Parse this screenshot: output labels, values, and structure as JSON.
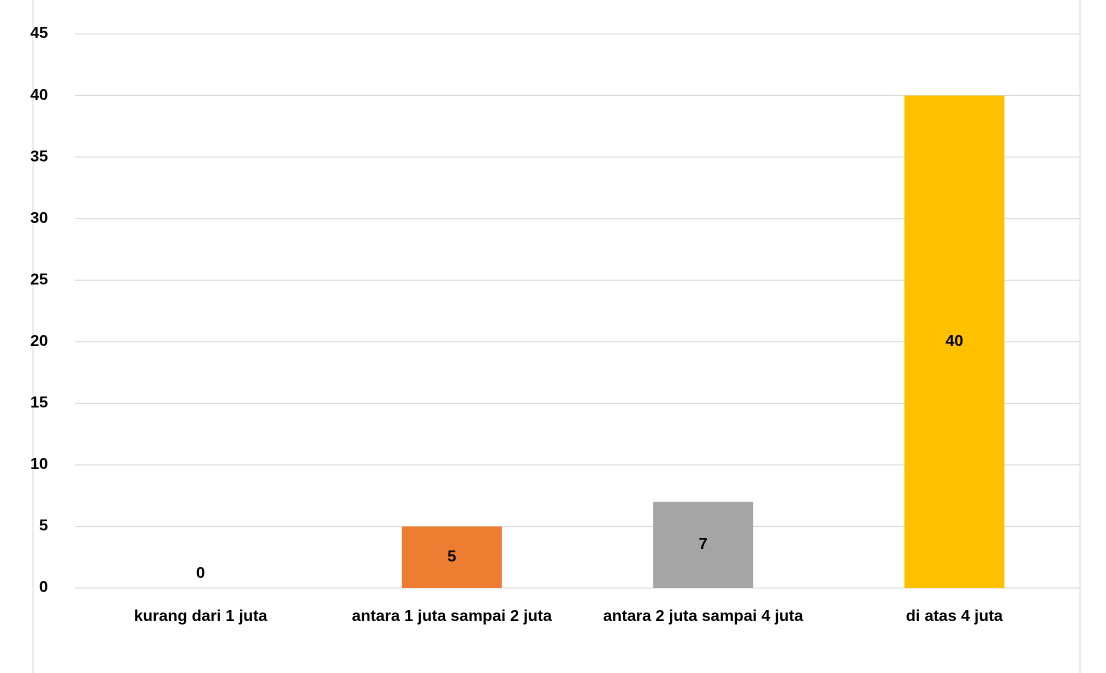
{
  "chart_data": {
    "type": "bar",
    "categories": [
      "kurang dari 1 juta",
      "antara 1 juta sampai 2 juta",
      "antara 2 juta sampai 4 juta",
      "di atas 4 juta"
    ],
    "values": [
      0,
      5,
      7,
      40
    ],
    "colors": [
      "#4472c4",
      "#ed7d31",
      "#a5a5a5",
      "#ffc000"
    ],
    "ylim": [
      0,
      45
    ],
    "yticks": [
      0,
      5,
      10,
      15,
      20,
      25,
      30,
      35,
      40,
      45
    ],
    "grid": true,
    "data_labels": true
  }
}
